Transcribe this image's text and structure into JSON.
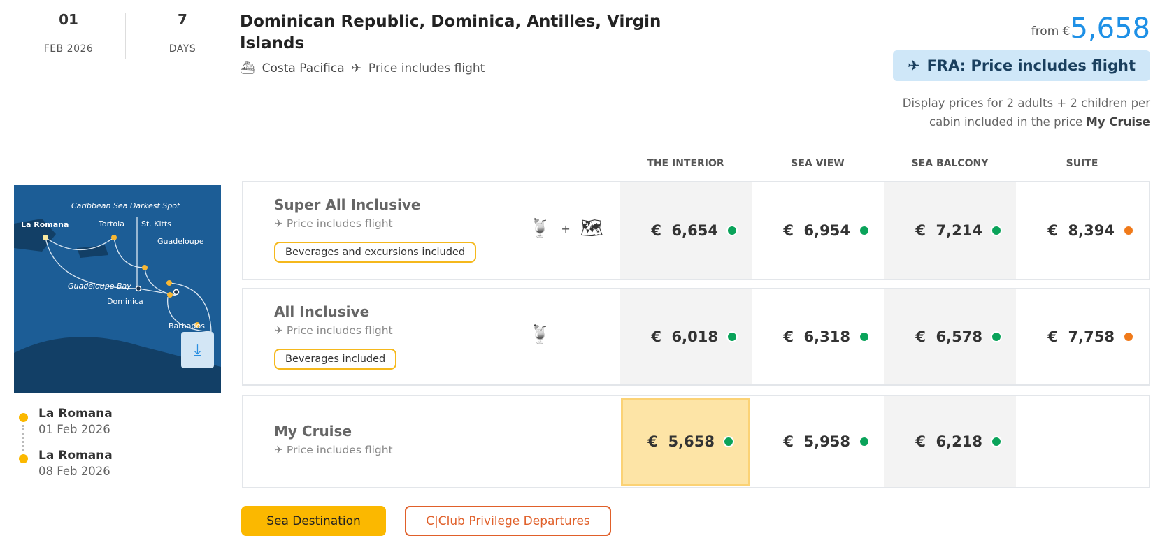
{
  "header": {
    "start_day": "01",
    "start_month": "FEB 2026",
    "duration": "7",
    "duration_unit": "DAYS",
    "title": "Dominican Republic, Dominica, Antilles, Virgin Islands",
    "ship": "Costa Pacifica",
    "flight_note": "Price includes flight",
    "from_label": "from €",
    "from_price": "5,658",
    "flight_badge": "FRA: Price includes flight",
    "note_text": "Display prices for 2 adults + 2 children per cabin included in the price",
    "note_bold": "My Cruise"
  },
  "columns": [
    "THE INTERIOR",
    "SEA VIEW",
    "SEA BALCONY",
    "SUITE"
  ],
  "rows": [
    {
      "name": "Super All Inclusive",
      "flight": "Price includes flight",
      "tag": "Beverages and excursions included",
      "icons": [
        "drinks-icon",
        "plus",
        "map-icon"
      ],
      "prices": [
        {
          "v": "€  6,654",
          "s": "green"
        },
        {
          "v": "€  6,954",
          "s": "green"
        },
        {
          "v": "€  7,214",
          "s": "green"
        },
        {
          "v": "€  8,394",
          "s": "orange"
        }
      ]
    },
    {
      "name": "All Inclusive",
      "flight": "Price includes flight",
      "tag": "Beverages included",
      "icons": [
        "drinks-icon"
      ],
      "prices": [
        {
          "v": "€  6,018",
          "s": "green"
        },
        {
          "v": "€  6,318",
          "s": "green"
        },
        {
          "v": "€  6,578",
          "s": "green"
        },
        {
          "v": "€  7,758",
          "s": "orange"
        }
      ]
    },
    {
      "name": "My Cruise",
      "flight": "Price includes flight",
      "selected": 0,
      "prices": [
        {
          "v": "€  5,658",
          "s": "green"
        },
        {
          "v": "€  5,958",
          "s": "green"
        },
        {
          "v": "€  6,218",
          "s": "green"
        }
      ]
    }
  ],
  "map": {
    "labels": [
      "Caribbean Sea Darkest Spot",
      "La Romana",
      "Tortola",
      "St. Kitts",
      "Guadeloupe",
      "Guadeloupe Bay",
      "Dominica",
      "Barbados"
    ]
  },
  "itinerary": [
    {
      "port": "La Romana",
      "date": "01 Feb 2026"
    },
    {
      "port": "La Romana",
      "date": "08 Feb 2026"
    }
  ],
  "buttons": {
    "sea_destination": "Sea Destination",
    "cclub": "C|Club Privilege Departures"
  },
  "colors": {
    "accent_blue": "#1e90e6",
    "green": "#0aa35a",
    "orange": "#f07a1a",
    "yellow": "#f5b81c",
    "cclub": "#e0602a"
  }
}
